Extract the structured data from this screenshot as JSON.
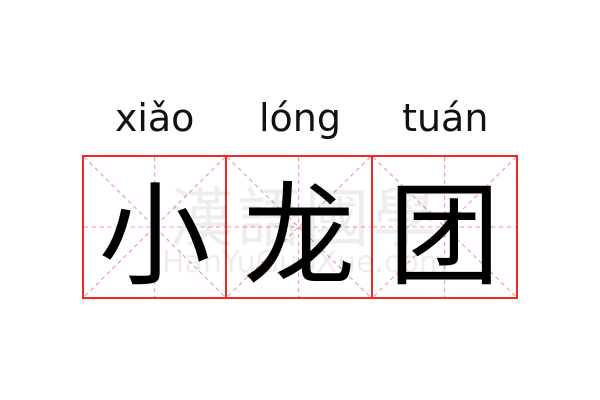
{
  "entries": [
    {
      "pinyin": "xiǎo",
      "char": "小"
    },
    {
      "pinyin": "lóng",
      "char": "龙"
    },
    {
      "pinyin": "tuán",
      "char": "团"
    }
  ],
  "watermark": {
    "chinese": "漢語國學",
    "latin": "HanYuGuoXue.com"
  },
  "colors": {
    "grid_border": "#f02828",
    "grid_guides": "#f59a9a",
    "text": "#000000"
  }
}
